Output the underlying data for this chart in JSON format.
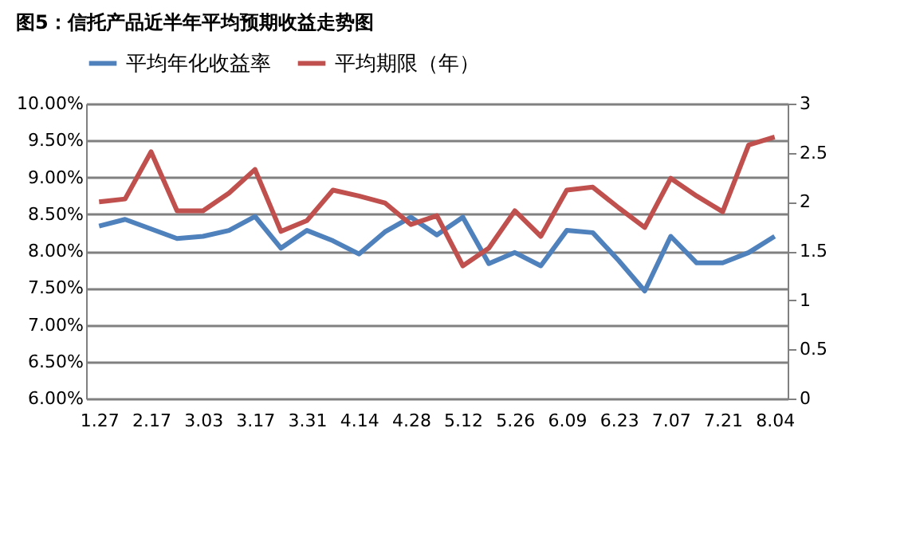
{
  "chart_data": {
    "type": "line",
    "title": "图5：信托产品近半年平均预期收益走势图",
    "categories": [
      "1.27",
      null,
      "2.17",
      null,
      "3.03",
      null,
      "3.17",
      null,
      "3.31",
      null,
      "4.14",
      null,
      "4.28",
      null,
      "5.12",
      null,
      "5.26",
      null,
      "6.09",
      null,
      "6.23",
      null,
      "7.07",
      null,
      "7.21",
      null,
      "8.04"
    ],
    "series": [
      {
        "name": "平均年化收益率",
        "color": "#4f81bd",
        "values": [
          8.34,
          8.43,
          8.3,
          8.17,
          8.2,
          8.28,
          8.47,
          8.04,
          8.28,
          8.14,
          7.96,
          8.26,
          8.46,
          8.22,
          8.46,
          7.83,
          7.98,
          7.8,
          8.28,
          8.25,
          7.87,
          7.46,
          8.2,
          7.84,
          7.84,
          7.98,
          8.2
        ]
      },
      {
        "name": "平均期限（年）",
        "color": "#c0504d",
        "axis": "y2",
        "values": [
          2.0,
          2.03,
          2.51,
          1.91,
          1.91,
          2.09,
          2.33,
          1.7,
          1.81,
          2.12,
          2.06,
          1.99,
          1.77,
          1.86,
          1.35,
          1.53,
          1.91,
          1.65,
          2.12,
          2.15,
          1.94,
          1.74,
          2.24,
          2.06,
          1.9,
          2.58,
          2.66
        ]
      }
    ],
    "ylim": [
      6,
      10
    ],
    "yticks": [
      {
        "value": 6,
        "label": "6.00%"
      },
      {
        "value": 6.5,
        "label": "6.50%"
      },
      {
        "value": 7,
        "label": "7.00%"
      },
      {
        "value": 7.5,
        "label": "7.50%"
      },
      {
        "value": 8,
        "label": "8.00%"
      },
      {
        "value": 8.5,
        "label": "8.50%"
      },
      {
        "value": 9,
        "label": "9.00%"
      },
      {
        "value": 9.5,
        "label": "9.50%"
      },
      {
        "value": 10,
        "label": "10.00%"
      }
    ],
    "y2lim": [
      0,
      3
    ],
    "y2ticks": [
      0,
      0.5,
      1,
      1.5,
      2,
      2.5,
      3
    ],
    "grid": "y",
    "legend": "top",
    "marker": "none",
    "line_style": "solid"
  }
}
